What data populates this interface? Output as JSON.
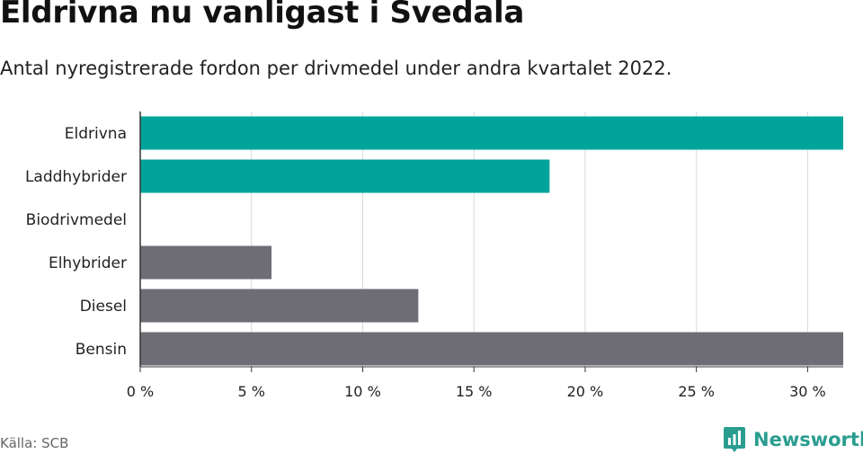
{
  "title": "Eldrivna nu vanligast i Svedala",
  "subtitle": "Antal nyregistrerade fordon per drivmedel under andra kvartalet 2022.",
  "source": "Källa: SCB",
  "logo_text": "Newsworthy",
  "colors": {
    "highlight": "#00a49a",
    "default": "#6e6d75",
    "grid": "#d9d9d9",
    "axis": "#333333"
  },
  "chart_data": {
    "type": "bar",
    "orientation": "horizontal",
    "categories": [
      "Eldrivna",
      "Laddhybrider",
      "Biodrivmedel",
      "Elhybrider",
      "Diesel",
      "Bensin"
    ],
    "values": [
      31.6,
      18.4,
      0,
      5.9,
      12.5,
      31.6
    ],
    "highlight": [
      true,
      true,
      false,
      false,
      false,
      false
    ],
    "xlim": [
      0,
      31.6
    ],
    "xticks": [
      0,
      5,
      10,
      15,
      20,
      25,
      30
    ],
    "xtick_labels": [
      "0 %",
      "5 %",
      "10 %",
      "15 %",
      "20 %",
      "25 %",
      "30 %"
    ],
    "grid": true
  }
}
